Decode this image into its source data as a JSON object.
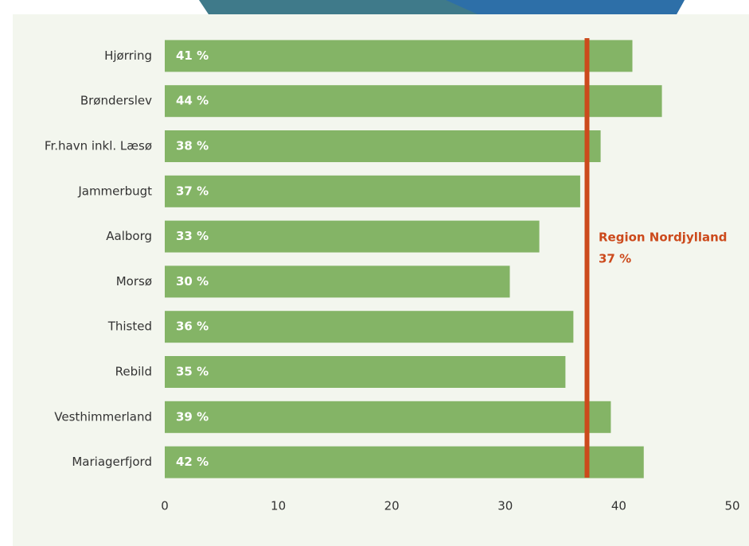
{
  "chart_data": {
    "type": "bar",
    "orientation": "horizontal",
    "categories": [
      "Hjørring",
      "Brønderslev",
      "Fr.havn inkl. Læsø",
      "Jammerbugt",
      "Aalborg",
      "Morsø",
      "Thisted",
      "Rebild",
      "Vesthimmerland",
      "Mariagerfjord"
    ],
    "values": [
      41.2,
      43.8,
      38.4,
      36.6,
      33.0,
      30.4,
      36.0,
      35.3,
      39.3,
      42.2
    ],
    "value_labels": [
      "41 %",
      "44 %",
      "38 %",
      "37 %",
      "33 %",
      "30 %",
      "36 %",
      "35 %",
      "39 %",
      "42 %"
    ],
    "color": "#84b466",
    "xlim": [
      0,
      50
    ],
    "xticks": [
      0,
      10,
      20,
      30,
      40,
      50
    ],
    "reference": {
      "value": 37.2,
      "label": "Region Nordjylland",
      "value_label": "37 %",
      "color": "#cc4a1c"
    }
  }
}
